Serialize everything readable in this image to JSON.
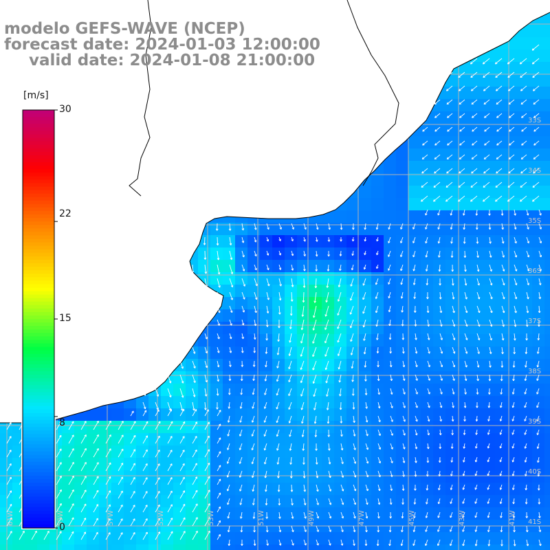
{
  "title": {
    "line1": "modelo GEFS-WAVE (NCEP)",
    "line2": "forecast date: 2024-01-03 12:00:00",
    "line3": "valid date: 2024-01-08 21:00:00"
  },
  "colorbar": {
    "unit": "[m/s]",
    "ticks": [
      "30",
      "22",
      "15",
      "8",
      "0"
    ],
    "tick_values": [
      30,
      22,
      15,
      8,
      0
    ],
    "range": [
      0,
      30
    ],
    "colors": [
      "#0000ff",
      "#0073ff",
      "#00e6ff",
      "#00ff44",
      "#ffff00",
      "#ff8800",
      "#ff0000",
      "#c00078"
    ]
  },
  "map": {
    "land_color": "#ffffff",
    "grid_color": "#b4b4b4",
    "lon_labels": [
      "61W",
      "59W",
      "57W",
      "55W",
      "53W",
      "51W",
      "49W",
      "47W",
      "45W",
      "43W",
      "41W"
    ],
    "lat_labels": [
      "33S",
      "34S",
      "35S",
      "36S",
      "37S",
      "38S",
      "39S",
      "40S",
      "41S"
    ]
  }
}
